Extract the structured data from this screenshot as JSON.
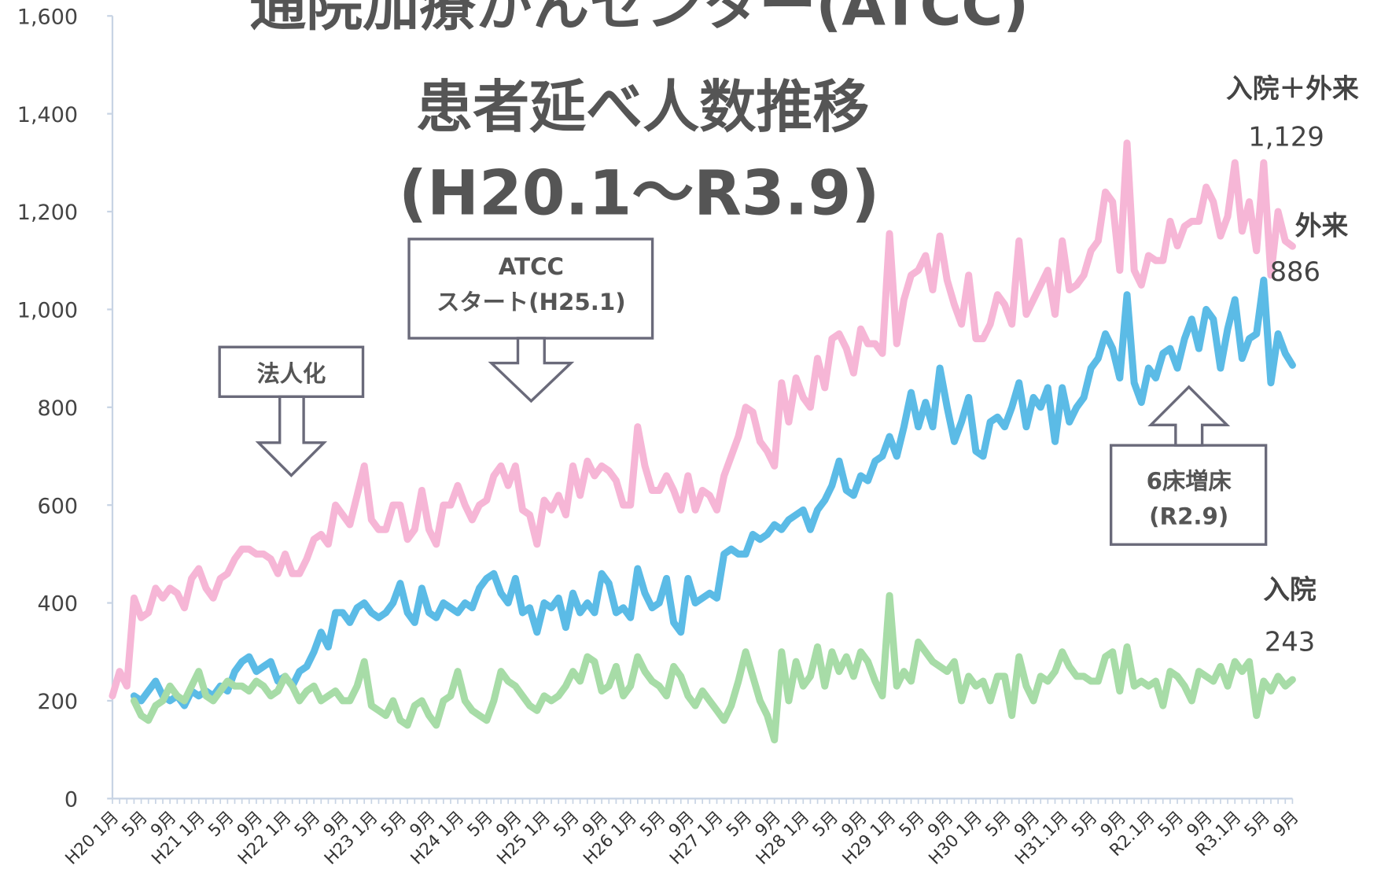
{
  "chart_data": {
    "type": "line",
    "title_lines": [
      "通院加療がんセンター(ATCC)",
      "患者延べ人数推移",
      "(H20.1～R3.9)"
    ],
    "categories": [
      "H20 1月",
      null,
      null,
      null,
      "5月",
      null,
      null,
      null,
      "9月",
      null,
      null,
      null,
      "H21 1月",
      null,
      null,
      null,
      "5月",
      null,
      null,
      null,
      "9月",
      null,
      null,
      null,
      "H22 1月",
      null,
      null,
      null,
      "5月",
      null,
      null,
      null,
      "9月",
      null,
      null,
      null,
      "H23 1月",
      null,
      null,
      null,
      "5月",
      null,
      null,
      null,
      "9月",
      null,
      null,
      null,
      "H24 1月",
      null,
      null,
      null,
      "5月",
      null,
      null,
      null,
      "9月",
      null,
      null,
      null,
      "H25 1月",
      null,
      null,
      null,
      "5月",
      null,
      null,
      null,
      "9月",
      null,
      null,
      null,
      "H26 1月",
      null,
      null,
      null,
      "5月",
      null,
      null,
      null,
      "9月",
      null,
      null,
      null,
      "H27 1月",
      null,
      null,
      null,
      "5月",
      null,
      null,
      null,
      "9月",
      null,
      null,
      null,
      "H28 1月",
      null,
      null,
      null,
      "5月",
      null,
      null,
      null,
      "9月",
      null,
      null,
      null,
      "H29 1月",
      null,
      null,
      null,
      "5月",
      null,
      null,
      null,
      "9月",
      null,
      null,
      null,
      "H30 1月",
      null,
      null,
      null,
      "5月",
      null,
      null,
      null,
      "9月",
      null,
      null,
      null,
      "H31.1月",
      null,
      null,
      null,
      "5月",
      null,
      null,
      null,
      "9月",
      null,
      null,
      null,
      "R2.1月",
      null,
      null,
      null,
      "5月",
      null,
      null,
      null,
      "9月",
      null,
      null,
      null,
      "R3.1月",
      null,
      null,
      null,
      "5月",
      null,
      null,
      null,
      "9月"
    ],
    "series": [
      {
        "name": "入院＋外来",
        "color": "#f6b6d6",
        "last_value_label": "1,129",
        "values": [
          210,
          260,
          230,
          410,
          370,
          380,
          430,
          410,
          430,
          420,
          390,
          450,
          470,
          430,
          410,
          450,
          460,
          490,
          510,
          510,
          500,
          500,
          490,
          460,
          500,
          460,
          460,
          490,
          530,
          540,
          520,
          600,
          580,
          560,
          620,
          680,
          570,
          550,
          550,
          600,
          600,
          530,
          550,
          630,
          550,
          520,
          600,
          600,
          640,
          600,
          570,
          600,
          610,
          660,
          680,
          640,
          680,
          590,
          580,
          520,
          610,
          590,
          620,
          580,
          680,
          620,
          690,
          660,
          680,
          670,
          650,
          600,
          600,
          760,
          680,
          630,
          630,
          660,
          630,
          590,
          660,
          590,
          630,
          620,
          590,
          660,
          700,
          740,
          800,
          790,
          730,
          710,
          680,
          850,
          770,
          860,
          820,
          800,
          900,
          840,
          940,
          950,
          920,
          870,
          960,
          930,
          930,
          910,
          1155,
          930,
          1020,
          1070,
          1080,
          1110,
          1040,
          1150,
          1060,
          1010,
          970,
          1070,
          940,
          940,
          970,
          1030,
          1010,
          970,
          1140,
          990,
          1020,
          1050,
          1080,
          990,
          1140,
          1040,
          1050,
          1070,
          1120,
          1140,
          1240,
          1220,
          1080,
          1340,
          1080,
          1050,
          1110,
          1100,
          1100,
          1180,
          1130,
          1170,
          1180,
          1180,
          1250,
          1220,
          1150,
          1190,
          1300,
          1160,
          1220,
          1120,
          1300,
          1070,
          1200,
          1140,
          1129
        ]
      },
      {
        "name": "外来",
        "color": "#5bbbe6",
        "last_value_label": "886",
        "values": [
          null,
          null,
          null,
          210,
          200,
          220,
          240,
          210,
          200,
          210,
          190,
          220,
          210,
          220,
          210,
          230,
          220,
          260,
          280,
          290,
          260,
          270,
          280,
          240,
          250,
          230,
          260,
          270,
          300,
          340,
          310,
          380,
          380,
          360,
          390,
          400,
          380,
          370,
          380,
          400,
          440,
          380,
          360,
          430,
          380,
          370,
          400,
          390,
          380,
          400,
          390,
          430,
          450,
          460,
          420,
          400,
          450,
          380,
          390,
          340,
          400,
          390,
          410,
          350,
          420,
          380,
          400,
          380,
          460,
          440,
          380,
          390,
          370,
          470,
          420,
          390,
          400,
          450,
          360,
          340,
          450,
          400,
          410,
          420,
          410,
          500,
          510,
          500,
          500,
          540,
          530,
          540,
          560,
          550,
          570,
          580,
          590,
          550,
          590,
          610,
          640,
          690,
          630,
          620,
          660,
          650,
          690,
          700,
          740,
          700,
          760,
          830,
          760,
          810,
          760,
          880,
          800,
          730,
          770,
          820,
          710,
          700,
          770,
          780,
          760,
          800,
          850,
          760,
          820,
          800,
          840,
          730,
          840,
          770,
          800,
          820,
          880,
          900,
          950,
          920,
          860,
          1030,
          850,
          810,
          880,
          860,
          910,
          920,
          880,
          940,
          980,
          920,
          1000,
          980,
          880,
          960,
          1020,
          900,
          940,
          950,
          1060,
          850,
          950,
          910,
          886
        ]
      },
      {
        "name": "入院",
        "color": "#a7dca7",
        "last_value_label": "243",
        "values": [
          null,
          null,
          null,
          200,
          170,
          160,
          190,
          200,
          230,
          210,
          200,
          230,
          260,
          210,
          200,
          220,
          240,
          230,
          230,
          220,
          240,
          230,
          210,
          220,
          250,
          230,
          200,
          220,
          230,
          200,
          210,
          220,
          200,
          200,
          230,
          280,
          190,
          180,
          170,
          200,
          160,
          150,
          190,
          200,
          170,
          150,
          200,
          210,
          260,
          200,
          180,
          170,
          160,
          200,
          260,
          240,
          230,
          210,
          190,
          180,
          210,
          200,
          210,
          230,
          260,
          240,
          290,
          280,
          220,
          230,
          270,
          210,
          230,
          290,
          260,
          240,
          230,
          210,
          270,
          250,
          210,
          190,
          220,
          200,
          180,
          160,
          190,
          240,
          300,
          250,
          200,
          170,
          120,
          300,
          200,
          280,
          230,
          250,
          310,
          230,
          300,
          260,
          290,
          250,
          300,
          280,
          240,
          210,
          415,
          230,
          260,
          240,
          320,
          300,
          280,
          270,
          260,
          280,
          200,
          250,
          230,
          240,
          200,
          250,
          250,
          170,
          290,
          230,
          200,
          250,
          240,
          260,
          300,
          270,
          250,
          250,
          240,
          240,
          290,
          300,
          220,
          310,
          230,
          240,
          230,
          240,
          190,
          260,
          250,
          230,
          200,
          260,
          250,
          240,
          270,
          230,
          280,
          260,
          280,
          170,
          240,
          220,
          250,
          230,
          243
        ]
      }
    ],
    "ylim": [
      0,
      1600
    ],
    "yticks": [
      0,
      200,
      400,
      600,
      800,
      {
        "value": 1000,
        "label": "1,000"
      },
      {
        "value": 1200,
        "label": "1,200"
      },
      {
        "value": 1400,
        "label": "1,400"
      },
      {
        "value": 1600,
        "label": "1,600"
      }
    ],
    "annotations": [
      "法人化",
      "ATCC",
      "スタート(H25.1)",
      "6床増床",
      "(R2.9)"
    ]
  }
}
